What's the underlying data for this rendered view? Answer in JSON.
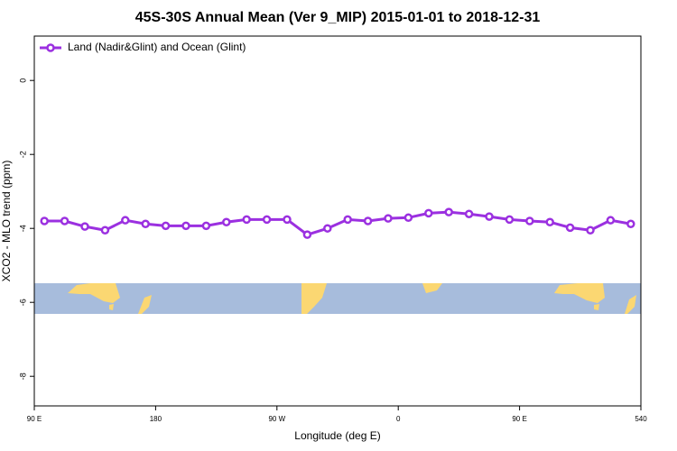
{
  "chart_data": {
    "type": "line",
    "title": "45S-30S Annual Mean (Ver 9_MIP)   2015-01-01 to 2018-12-31",
    "xlabel": "Longitude (deg E)",
    "ylabel": "XCO2 - MLO trend (ppm)",
    "x": [
      97.5,
      112.5,
      127.5,
      142.5,
      157.5,
      172.5,
      187.5,
      202.5,
      217.5,
      232.5,
      247.5,
      262.5,
      277.5,
      292.5,
      307.5,
      322.5,
      337.5,
      352.5,
      367.5,
      382.5,
      397.5,
      412.5,
      427.5,
      442.5,
      457.5,
      472.5,
      487.5,
      502.5,
      517.5,
      532.5
    ],
    "series": [
      {
        "name": "Land (Nadir&Glint) and Ocean (Glint)",
        "color": "#9b30e0",
        "values": [
          -3.8,
          -3.8,
          -3.95,
          -4.05,
          -3.78,
          -3.88,
          -3.93,
          -3.93,
          -3.93,
          -3.83,
          -3.76,
          -3.76,
          -3.76,
          -4.17,
          -4.0,
          -3.76,
          -3.8,
          -3.73,
          -3.71,
          -3.59,
          -3.56,
          -3.61,
          -3.68,
          -3.76,
          -3.8,
          -3.83,
          -3.98,
          -4.05,
          -3.78,
          -3.88
        ]
      }
    ],
    "xlim": [
      90,
      540
    ],
    "xticks": [
      {
        "value": 90,
        "label": "90 E"
      },
      180,
      {
        "value": 270,
        "label": "90 W"
      },
      {
        "value": 360,
        "label": "0"
      },
      {
        "value": 450,
        "label": "90 E"
      },
      540
    ],
    "ylim": [
      -8.8,
      1.2
    ],
    "yticks": [
      -8,
      -6,
      -4,
      -2,
      0
    ],
    "legend": "top-left"
  }
}
